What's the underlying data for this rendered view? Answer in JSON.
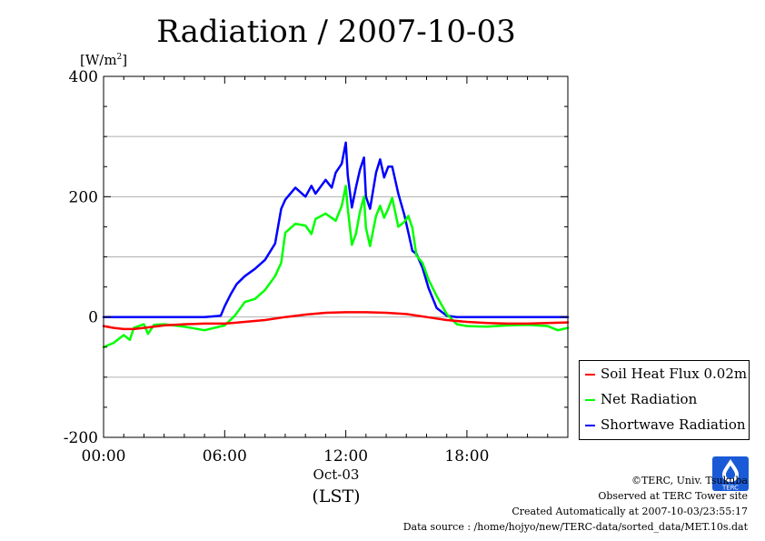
{
  "chart_data": {
    "type": "line",
    "title": "Radiation / 2007-10-03",
    "ylabel_unit": "[W/m",
    "ylabel_sup": "2",
    "ylabel_close": "]",
    "ylim": [
      -200,
      400
    ],
    "yticks": [
      -200,
      0,
      200,
      400
    ],
    "xlim": [
      0,
      23
    ],
    "xticks": [
      {
        "value": 0,
        "label": "00:00"
      },
      {
        "value": 6,
        "label": "06:00"
      },
      {
        "value": 12,
        "label": "12:00"
      },
      {
        "value": 18,
        "label": "18:00"
      }
    ],
    "date_label": "Oct-03",
    "timezone_label": "(LST)",
    "grid": true,
    "legend_position": "bottom-right-outside",
    "series": [
      {
        "name": "Soil Heat Flux 0.02m",
        "color": "#ff0000",
        "x": [
          0,
          0.5,
          1,
          1.5,
          2,
          3,
          4,
          5,
          6,
          7,
          8,
          9,
          10,
          11,
          12,
          13,
          14,
          15,
          16,
          17,
          18,
          19,
          20,
          21,
          22,
          23
        ],
        "y": [
          -15,
          -18,
          -20,
          -20,
          -18,
          -14,
          -12,
          -11,
          -11,
          -8,
          -5,
          0,
          4,
          7,
          8,
          8,
          7,
          5,
          0,
          -5,
          -8,
          -10,
          -11,
          -11,
          -10,
          -9
        ]
      },
      {
        "name": "Net Radiation",
        "color": "#00ff00",
        "x": [
          0,
          0.5,
          1,
          1.3,
          1.5,
          2,
          2.2,
          2.5,
          3,
          4,
          5,
          6,
          6.5,
          7,
          7.5,
          8,
          8.5,
          8.8,
          9,
          9.5,
          10,
          10.3,
          10.5,
          11,
          11.5,
          11.8,
          12,
          12.1,
          12.3,
          12.5,
          12.7,
          12.9,
          13,
          13.2,
          13.5,
          13.7,
          13.9,
          14.1,
          14.3,
          14.6,
          14.9,
          15.1,
          15.3,
          15.5,
          15.8,
          16.1,
          16.5,
          17,
          17.5,
          18,
          19,
          20,
          21,
          22,
          22.5,
          23
        ],
        "y": [
          -50,
          -43,
          -30,
          -38,
          -18,
          -12,
          -28,
          -13,
          -12,
          -16,
          -22,
          -14,
          2,
          25,
          30,
          45,
          68,
          90,
          140,
          155,
          152,
          138,
          163,
          172,
          160,
          185,
          218,
          180,
          120,
          138,
          175,
          200,
          148,
          118,
          168,
          185,
          165,
          180,
          198,
          150,
          158,
          168,
          148,
          102,
          90,
          62,
          35,
          5,
          -12,
          -15,
          -16,
          -14,
          -13,
          -15,
          -22,
          -18
        ]
      },
      {
        "name": "Shortwave Radiation",
        "color": "#0000ff",
        "x": [
          0,
          1,
          2,
          3,
          4,
          5,
          5.8,
          6,
          6.3,
          6.6,
          7,
          7.5,
          8,
          8.5,
          8.8,
          9,
          9.5,
          10,
          10.3,
          10.5,
          11,
          11.3,
          11.5,
          11.8,
          12,
          12.1,
          12.3,
          12.5,
          12.7,
          12.9,
          13,
          13.2,
          13.5,
          13.7,
          13.9,
          14.1,
          14.3,
          14.6,
          14.9,
          15.1,
          15.3,
          15.5,
          15.8,
          16.1,
          16.5,
          17,
          17.5,
          18,
          19,
          20,
          21,
          22,
          23
        ],
        "y": [
          0,
          0,
          0,
          0,
          0,
          0,
          2,
          18,
          38,
          55,
          68,
          80,
          95,
          122,
          180,
          195,
          215,
          200,
          218,
          205,
          228,
          215,
          240,
          255,
          290,
          235,
          182,
          215,
          245,
          265,
          200,
          180,
          240,
          262,
          232,
          250,
          250,
          205,
          170,
          140,
          110,
          105,
          82,
          48,
          15,
          2,
          0,
          0,
          0,
          0,
          0,
          0,
          0
        ]
      }
    ]
  },
  "footer": {
    "copyright": "©TERC, Univ. Tsukuba",
    "observed": "Observed at TERC Tower site",
    "created": "Created Automatically at 2007-10-03/23:55:17",
    "source": "Data source : /home/hojyo/new/TERC-data/sorted_data/MET.10s.dat"
  },
  "logo": {
    "text": "TERC",
    "color": "#1a5ad6"
  }
}
